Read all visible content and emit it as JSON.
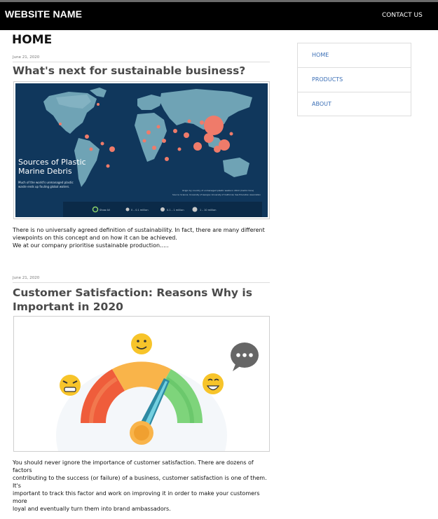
{
  "header": {
    "site_name": "WEBSITE NAME",
    "contact_label": "CONTACT US"
  },
  "page": {
    "title": "HOME"
  },
  "posts": [
    {
      "date": "June 21, 2020",
      "title": "What's next for sustainable business?",
      "image": {
        "heading_line1": "Sources of Plastic",
        "heading_line2": "Marine Debris",
        "caption_line1": "Much of the world's unmanaged plastic",
        "caption_line2": "waste ends up fouling global waters.",
        "note_line1": "Origin by country of unmanaged plastic waste in 2010 (metric tons)",
        "note_line2": "Source: Science; University of Georgia; University of California; Sea Education Association",
        "legend": [
          "Show All",
          "0 – 0.1 million",
          "0.1 – 1 million",
          "1 – 10 million"
        ]
      },
      "body_lines": [
        "There is no universally agreed definition of sustainability. In fact, there are many different",
        "viewpoints on this concept and on how it can be achieved.",
        "We at our company prioritise sustainable production....."
      ]
    },
    {
      "date": "June 21, 2020",
      "title_line1": "Customer Satisfaction: Reasons Why is",
      "title_line2": "Important in 2020",
      "body_lines": [
        "You should never ignore the importance of customer satisfaction. There are dozens of factors",
        "contributing to the success (or failure) of a business, customer satisfaction is one of them. It's",
        "important to track this factor and work on improving it in order to make your customers more",
        "loyal and eventually turn them into brand ambassadors."
      ]
    }
  ],
  "sidebar": {
    "items": [
      {
        "label": "HOME"
      },
      {
        "label": "PRODUCTS"
      },
      {
        "label": "ABOUT"
      }
    ]
  },
  "colors": {
    "header_bg": "#000000",
    "link": "#3b6fb6",
    "map_ocean": "#10375c",
    "map_land": "#6fa3b5",
    "map_bubble": "#ef7b6a"
  }
}
